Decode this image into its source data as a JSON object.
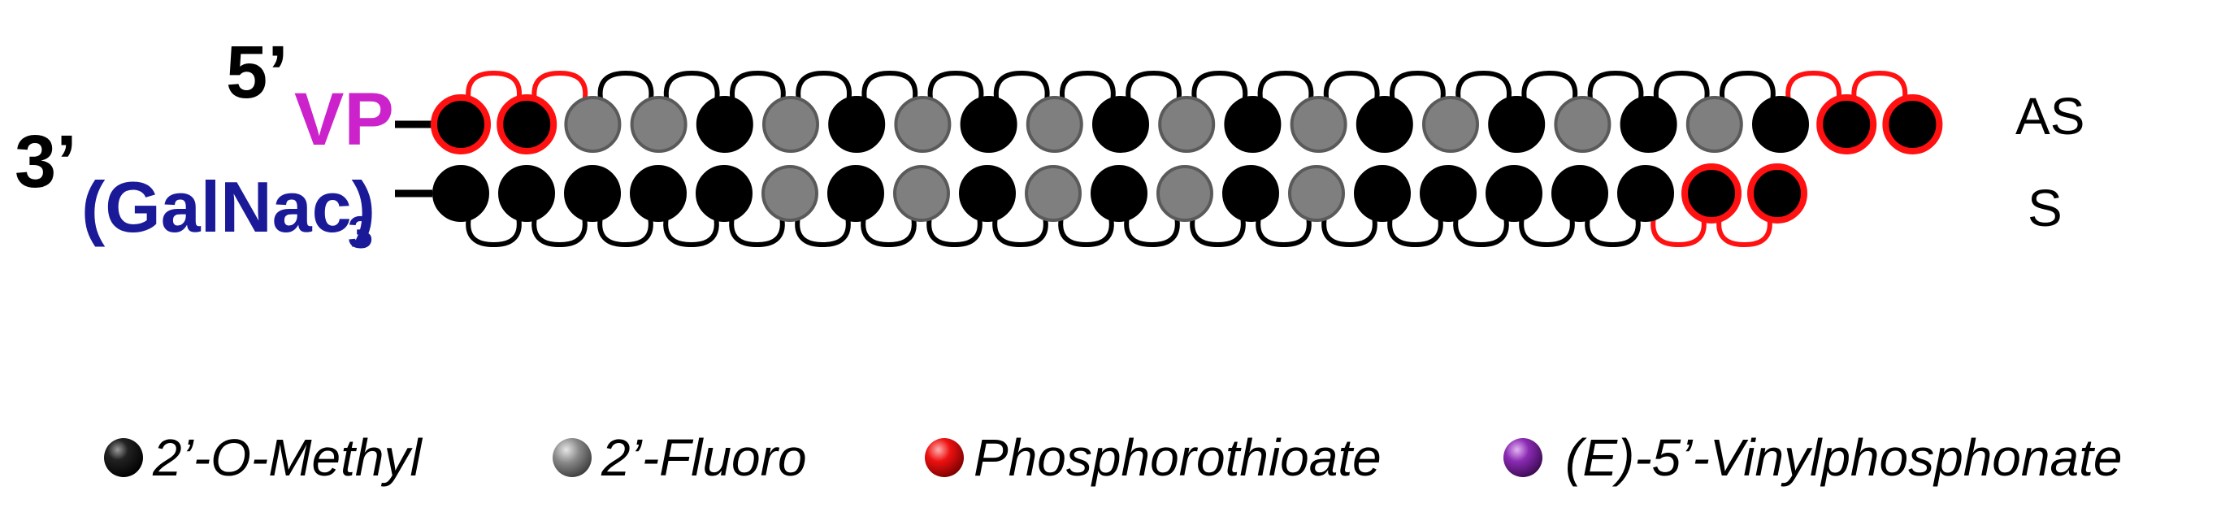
{
  "labels": {
    "five_prime": "5’",
    "three_prime": "3’",
    "vp": "VP",
    "galnac": "(GalNac)",
    "galnac_subscript": "3",
    "antisense": "AS",
    "sense": "S"
  },
  "colors": {
    "omethyl_fill": "#000000",
    "fluoro_fill": "#7f7f7f",
    "fluoro_stroke": "#5a5a5a",
    "ps_red": "#ff1111",
    "vp_magenta": "#cc22cc",
    "galnac_blue": "#1a1a99",
    "vinylphosphonate_purple": "#7a1fa2",
    "linker": "#000000"
  },
  "strands": {
    "antisense": {
      "nucleotides": [
        "O",
        "O",
        "F",
        "F",
        "O",
        "F",
        "O",
        "F",
        "O",
        "F",
        "O",
        "F",
        "O",
        "F",
        "O",
        "F",
        "O",
        "F",
        "O",
        "F",
        "O",
        "O",
        "O"
      ],
      "ps_circles": [
        0,
        1,
        21,
        22
      ],
      "ps_linkages": [
        0,
        1,
        20,
        21
      ]
    },
    "sense": {
      "nucleotides": [
        "O",
        "O",
        "O",
        "O",
        "O",
        "F",
        "O",
        "F",
        "O",
        "F",
        "O",
        "F",
        "O",
        "F",
        "O",
        "O",
        "O",
        "O",
        "O",
        "O",
        "O"
      ],
      "ps_circles": [
        19,
        20
      ],
      "ps_linkages": [
        18,
        19
      ]
    }
  },
  "legend": [
    {
      "key": "omethyl",
      "label": "2’-O-Methyl",
      "color": "#000000",
      "icon": "black-sphere-icon"
    },
    {
      "key": "fluoro",
      "label": "2’-Fluoro",
      "color": "#7f7f7f",
      "icon": "gray-sphere-icon"
    },
    {
      "key": "ps",
      "label": "Phosphorothioate",
      "color": "#ff1111",
      "icon": "red-sphere-icon"
    },
    {
      "key": "vinyl",
      "label": "(E)-5’-Vinylphosphonate",
      "color": "#7a1fa2",
      "icon": "purple-sphere-icon"
    }
  ]
}
